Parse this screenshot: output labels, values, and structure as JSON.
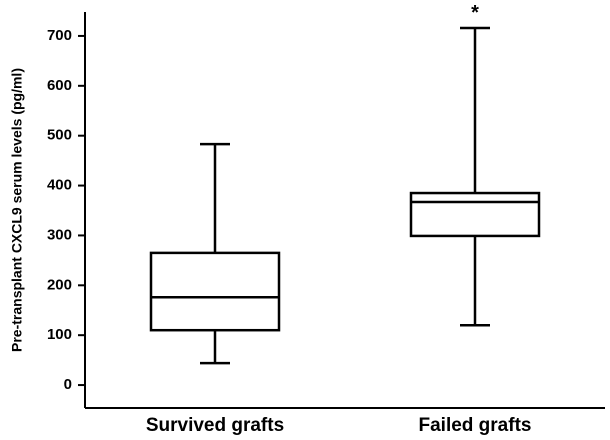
{
  "chart_data": {
    "type": "box",
    "ylabel": "Pre-transplant CXCL9 serum levels (pg/ml)",
    "categories": [
      "Survived grafts",
      "Failed grafts"
    ],
    "min": [
      44,
      120
    ],
    "q1": [
      110,
      299
    ],
    "median": [
      176,
      367
    ],
    "q3": [
      265,
      385
    ],
    "max": [
      483,
      716
    ],
    "color": "#000000",
    "ylim": [
      -46,
      748
    ],
    "yticks": [
      0,
      100,
      200,
      300,
      400,
      500,
      600,
      700
    ],
    "annotations": [
      {
        "text": "*",
        "category": "Failed grafts"
      }
    ]
  }
}
